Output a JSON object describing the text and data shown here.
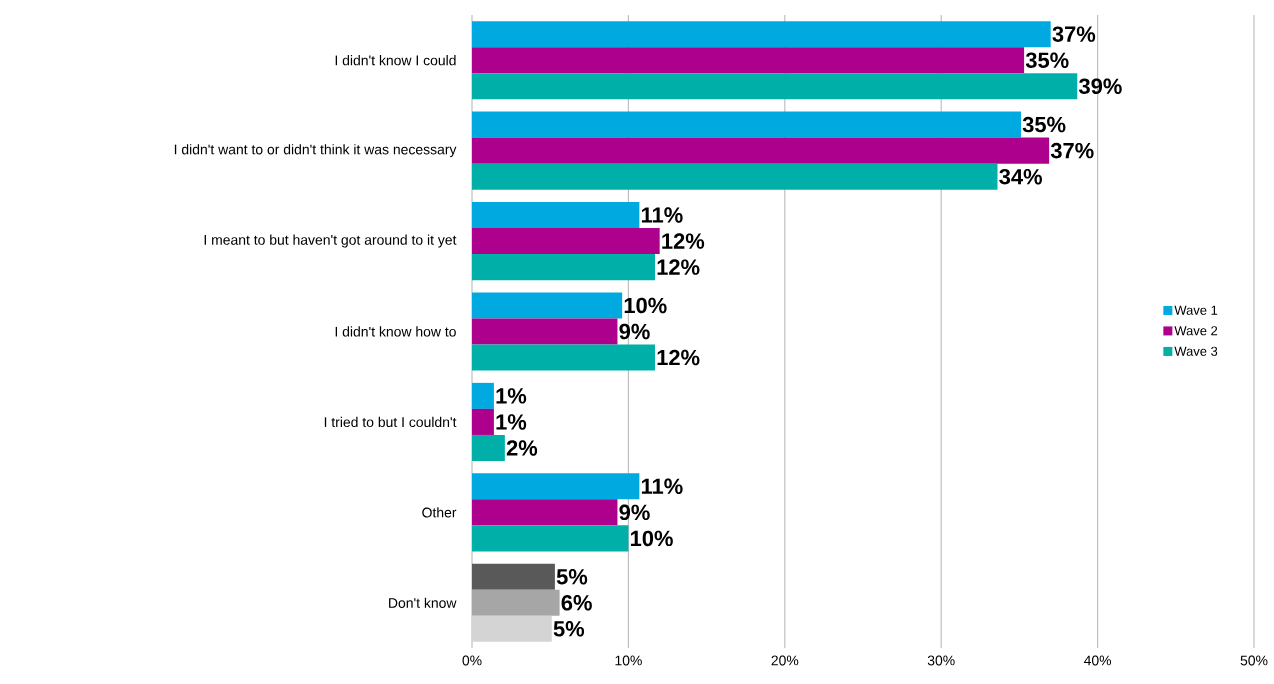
{
  "chart_data": {
    "type": "bar",
    "orientation": "horizontal",
    "categories": [
      "I didn't know I could",
      "I didn't want to or didn't think it was necessary",
      "I meant to but haven't got around to it yet",
      "I didn't know how to",
      "I tried to but I couldn't",
      "Other",
      "Don't know"
    ],
    "series": [
      {
        "name": "Wave 1",
        "color": "#00a9e0",
        "colors": [
          "#00a9e0",
          "#00a9e0",
          "#00a9e0",
          "#00a9e0",
          "#00a9e0",
          "#00a9e0",
          "#595959"
        ],
        "values": [
          37.0,
          35.1,
          10.7,
          9.6,
          1.4,
          10.7,
          5.3
        ],
        "value_labels": [
          "37%",
          "35%",
          "11%",
          "10%",
          "1%",
          "11%",
          "5%"
        ]
      },
      {
        "name": "Wave 2",
        "color": "#ad008c",
        "colors": [
          "#ad008c",
          "#ad008c",
          "#ad008c",
          "#ad008c",
          "#ad008c",
          "#ad008c",
          "#a6a6a6"
        ],
        "values": [
          35.3,
          36.9,
          12.0,
          9.3,
          1.4,
          9.3,
          5.6
        ],
        "value_labels": [
          "35%",
          "37%",
          "12%",
          "9%",
          "1%",
          "9%",
          "6%"
        ]
      },
      {
        "name": "Wave 3",
        "color": "#00b0a8",
        "colors": [
          "#00b0a8",
          "#00b0a8",
          "#00b0a8",
          "#00b0a8",
          "#00b0a8",
          "#00b0a8",
          "#d4d4d4"
        ],
        "values": [
          38.7,
          33.6,
          11.7,
          11.7,
          2.1,
          10.0,
          5.1
        ],
        "value_labels": [
          "39%",
          "34%",
          "12%",
          "12%",
          "2%",
          "10%",
          "5%"
        ]
      }
    ],
    "xlim": [
      0,
      50
    ],
    "xticks": [
      {
        "value": 0,
        "label": "0%"
      },
      {
        "value": 10,
        "label": "10%"
      },
      {
        "value": 20,
        "label": "20%"
      },
      {
        "value": 30,
        "label": "30%"
      },
      {
        "value": 40,
        "label": "40%"
      },
      {
        "value": 50,
        "label": "50%"
      }
    ],
    "grid": "x",
    "legend": "right"
  }
}
